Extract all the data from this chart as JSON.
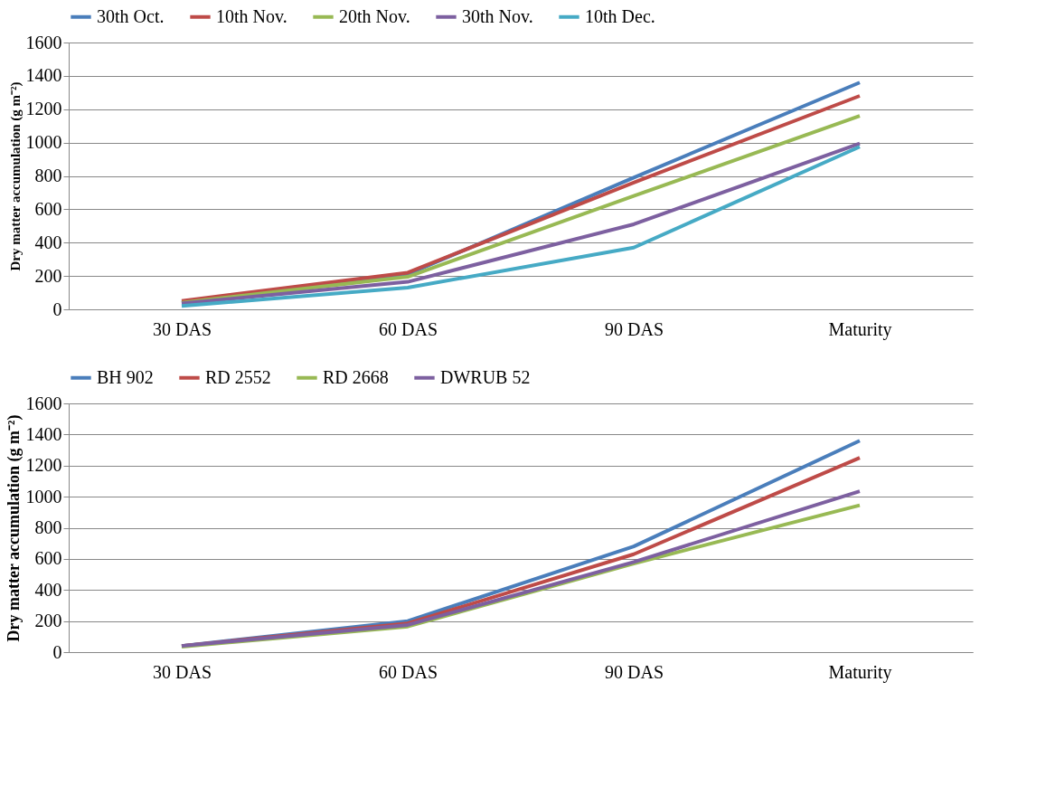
{
  "chart_data": [
    {
      "type": "line",
      "ylabel": "Dry matter accumulation (g m⁻²)",
      "categories": [
        "30 DAS",
        "60 DAS",
        "90 DAS",
        "Maturity"
      ],
      "ylim": [
        0,
        1600
      ],
      "yticks": [
        0,
        200,
        400,
        600,
        800,
        1000,
        1200,
        1400,
        1600
      ],
      "grid": "y",
      "legend": "top",
      "marker": "none",
      "line_style": "solid",
      "series": [
        {
          "name": "30th Oct.",
          "color": "#4a7ebb",
          "values": [
            40,
            210,
            790,
            1360
          ]
        },
        {
          "name": "10th Nov.",
          "color": "#be4b48",
          "values": [
            50,
            220,
            760,
            1280
          ]
        },
        {
          "name": "20th Nov.",
          "color": "#98b954",
          "values": [
            40,
            195,
            680,
            1160
          ]
        },
        {
          "name": "30th Nov.",
          "color": "#7d60a0",
          "values": [
            35,
            165,
            510,
            995
          ]
        },
        {
          "name": "10th Dec.",
          "color": "#46aac5",
          "values": [
            20,
            130,
            370,
            975
          ]
        }
      ]
    },
    {
      "type": "line",
      "ylabel": "Dry matter accumulation (g m⁻²)",
      "categories": [
        "30 DAS",
        "60 DAS",
        "90 DAS",
        "Maturity"
      ],
      "ylim": [
        0,
        1600
      ],
      "yticks": [
        0,
        200,
        400,
        600,
        800,
        1000,
        1200,
        1400,
        1600
      ],
      "grid": "y",
      "legend": "top",
      "marker": "none",
      "line_style": "solid",
      "series": [
        {
          "name": "BH 902",
          "color": "#4a7ebb",
          "values": [
            40,
            200,
            680,
            1360
          ]
        },
        {
          "name": "RD 2552",
          "color": "#be4b48",
          "values": [
            40,
            185,
            630,
            1250
          ]
        },
        {
          "name": "RD 2668",
          "color": "#98b954",
          "values": [
            35,
            165,
            570,
            945
          ]
        },
        {
          "name": "DWRUB 52",
          "color": "#7d60a0",
          "values": [
            40,
            175,
            580,
            1035
          ]
        }
      ]
    }
  ]
}
